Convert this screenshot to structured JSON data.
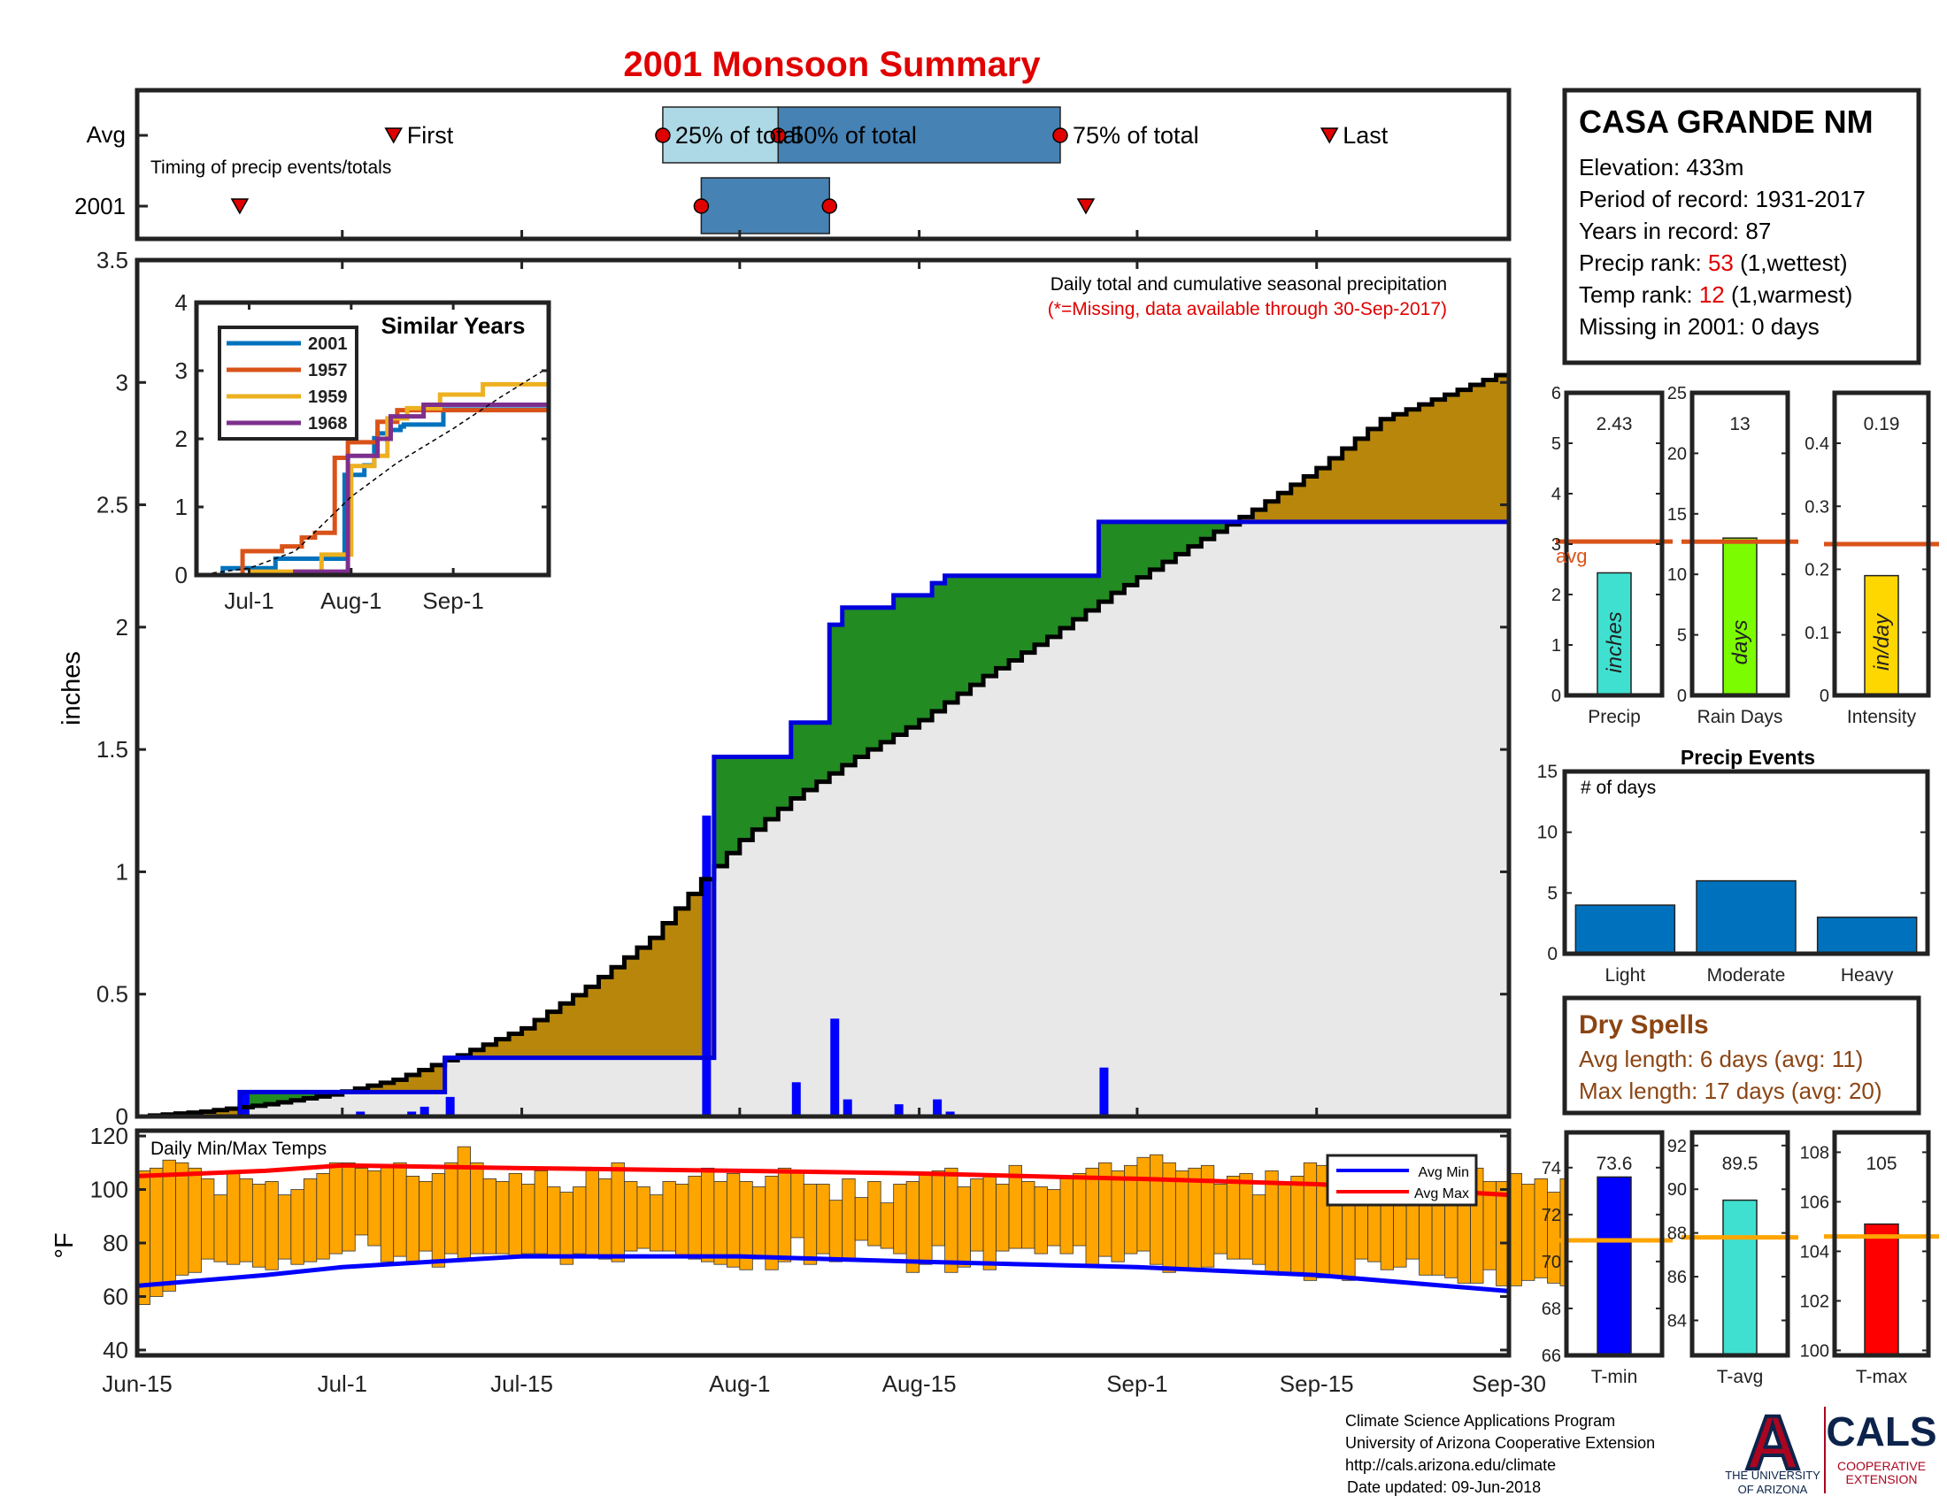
{
  "title": "2001 Monsoon Summary",
  "station": {
    "name": "CASA GRANDE NM",
    "elevation_label": "Elevation:",
    "elevation": "433m",
    "period_label": "Period of record:",
    "period": "1931-2017",
    "years_label": "Years in record:",
    "years": "87",
    "precip_rank_label": "Precip rank:",
    "precip_rank": "53",
    "precip_rank_note": "(1,wettest)",
    "temp_rank_label": "Temp rank:",
    "temp_rank": "12",
    "temp_rank_note": "(1,warmest)",
    "missing": "Missing in 2001: 0 days"
  },
  "timing": {
    "row_labels": [
      "Avg",
      "2001"
    ],
    "caption": "Timing of precip events/totals",
    "marker_labels": [
      "First",
      "25% of total",
      "50% of total",
      "75% of total",
      "Last"
    ],
    "avg": {
      "first": "2001-07-05",
      "p25": "2001-07-26",
      "p50": "2001-08-04",
      "p75": "2001-08-26",
      "last": "2001-09-16"
    },
    "y2001": {
      "first": "2001-06-23",
      "p25": "2001-07-29",
      "p50": "2001-08-08",
      "p75": "2001-08-28"
    },
    "colors": {
      "box_lower": "#add8e6",
      "box_upper": "#4682b4",
      "marker": "#e00000"
    }
  },
  "chart_data": [
    {
      "type": "area",
      "id": "daily_cumulative_precip",
      "title": "Daily total and cumulative seasonal precipitation",
      "subtitle": "(*=Missing, data available through 30-Sep-2017)",
      "ylabel": "inches",
      "ylim": [
        0,
        3.5
      ],
      "yticks": [
        0,
        0.5,
        1,
        1.5,
        2,
        2.5,
        3,
        3.5
      ],
      "ytick_labels": [
        "0",
        "0.5",
        "1",
        "1.5",
        "2",
        "2.5",
        "3",
        "3.5"
      ],
      "xlim": [
        "2001-06-15",
        "2001-09-30"
      ],
      "xtick_labels": [
        "Jun-15",
        "Jul-1",
        "Jul-15",
        "Aug-1",
        "Aug-15",
        "Sep-1",
        "Sep-15",
        "Sep-30"
      ],
      "series": [
        {
          "role": "avg_cumulative",
          "x": [
            "2001-06-15",
            "2001-06-20",
            "2001-06-25",
            "2001-06-30",
            "2001-07-05",
            "2001-07-10",
            "2001-07-15",
            "2001-07-20",
            "2001-07-25",
            "2001-07-29",
            "2001-08-01",
            "2001-08-05",
            "2001-08-10",
            "2001-08-15",
            "2001-08-20",
            "2001-08-25",
            "2001-08-30",
            "2001-09-05",
            "2001-09-10",
            "2001-09-15",
            "2001-09-20",
            "2001-09-25",
            "2001-09-30"
          ],
          "y": [
            0.0,
            0.02,
            0.05,
            0.09,
            0.15,
            0.25,
            0.36,
            0.53,
            0.73,
            0.97,
            1.13,
            1.3,
            1.47,
            1.62,
            1.8,
            1.96,
            2.14,
            2.33,
            2.48,
            2.65,
            2.85,
            2.95,
            3.05
          ]
        },
        {
          "role": "cumulative_2001",
          "x": [
            "2001-06-15",
            "2001-06-22",
            "2001-06-23",
            "2001-07-06",
            "2001-07-09",
            "2001-07-29",
            "2001-07-30",
            "2001-08-05",
            "2001-08-08",
            "2001-08-09",
            "2001-08-13",
            "2001-08-16",
            "2001-08-17",
            "2001-08-28",
            "2001-08-29",
            "2001-09-30"
          ],
          "y": [
            0.0,
            0.0,
            0.1,
            0.1,
            0.24,
            0.24,
            1.47,
            1.61,
            2.01,
            2.08,
            2.13,
            2.18,
            2.21,
            2.21,
            2.43,
            2.43
          ]
        },
        {
          "role": "daily_2001",
          "x": [
            "2001-06-23",
            "2001-07-02",
            "2001-07-06",
            "2001-07-07",
            "2001-07-09",
            "2001-07-29",
            "2001-08-05",
            "2001-08-08",
            "2001-08-09",
            "2001-08-13",
            "2001-08-16",
            "2001-08-17",
            "2001-08-29"
          ],
          "y": [
            0.1,
            0.02,
            0.02,
            0.04,
            0.08,
            1.23,
            0.14,
            0.4,
            0.07,
            0.05,
            0.07,
            0.02,
            0.2
          ]
        }
      ],
      "colors": {
        "below_avg": "#b8860b",
        "above_avg": "#228b22",
        "cumulative_line": "#0000dd",
        "daily_bars": "#0000ff",
        "fill": "#e8e8e8",
        "avg_line": "#000000"
      }
    },
    {
      "type": "line",
      "id": "similar_years",
      "title": "Similar Years",
      "ylim": [
        0,
        4
      ],
      "yticks": [
        0,
        1,
        2,
        3,
        4
      ],
      "ytick_labels": [
        "0",
        "1",
        "2",
        "3",
        "4"
      ],
      "xtick_labels": [
        "Jul-1",
        "Aug-1",
        "Sep-1"
      ],
      "xlim": [
        "2001-06-15",
        "2001-09-30"
      ],
      "series": [
        {
          "name": "2001",
          "color": "#0072bd",
          "x": [
            "2001-06-15",
            "2001-06-22",
            "2001-06-23",
            "2001-07-06",
            "2001-07-09",
            "2001-07-29",
            "2001-07-30",
            "2001-08-05",
            "2001-08-08",
            "2001-08-09",
            "2001-08-13",
            "2001-08-16",
            "2001-08-17",
            "2001-08-28",
            "2001-08-29"
          ],
          "y": [
            0.0,
            0.0,
            0.1,
            0.1,
            0.24,
            0.24,
            1.47,
            1.61,
            2.01,
            2.08,
            2.13,
            2.18,
            2.21,
            2.21,
            2.43
          ]
        },
        {
          "name": "1957",
          "color": "#d95319",
          "x": [
            "2001-06-15",
            "2001-06-28",
            "2001-06-29",
            "2001-07-10",
            "2001-07-11",
            "2001-07-16",
            "2001-07-17",
            "2001-07-20",
            "2001-07-21",
            "2001-07-26",
            "2001-07-27",
            "2001-07-30",
            "2001-07-31",
            "2001-08-08",
            "2001-08-09",
            "2001-08-14",
            "2001-08-15"
          ],
          "y": [
            0.0,
            0.0,
            0.35,
            0.35,
            0.42,
            0.42,
            0.55,
            0.55,
            0.62,
            0.62,
            1.72,
            1.72,
            1.95,
            1.95,
            2.25,
            2.25,
            2.42
          ]
        },
        {
          "name": "1959",
          "color": "#edb120",
          "x": [
            "2001-06-15",
            "2001-07-01",
            "2001-07-02",
            "2001-07-22",
            "2001-07-23",
            "2001-07-28",
            "2001-08-01",
            "2001-08-03",
            "2001-08-08",
            "2001-08-12",
            "2001-08-18",
            "2001-08-28",
            "2001-09-10",
            "2001-09-30"
          ],
          "y": [
            0.0,
            0.0,
            0.05,
            0.05,
            0.3,
            0.3,
            1.6,
            1.6,
            1.75,
            2.3,
            2.45,
            2.65,
            2.8,
            2.8
          ]
        },
        {
          "name": "1968",
          "color": "#7e2f8e",
          "x": [
            "2001-06-15",
            "2001-07-14",
            "2001-07-15",
            "2001-07-30",
            "2001-07-31",
            "2001-08-08",
            "2001-08-09",
            "2001-08-12",
            "2001-08-13",
            "2001-08-22",
            "2001-08-23",
            "2001-09-30"
          ],
          "y": [
            0.0,
            0.0,
            0.05,
            0.05,
            1.75,
            1.75,
            2.0,
            2.0,
            2.33,
            2.33,
            2.5,
            2.5
          ]
        }
      ],
      "avg_line": {
        "x": [
          "2001-06-15",
          "2001-07-01",
          "2001-07-15",
          "2001-08-01",
          "2001-08-15",
          "2001-09-01",
          "2001-09-15",
          "2001-09-30"
        ],
        "y": [
          0.0,
          0.1,
          0.35,
          1.15,
          1.65,
          2.15,
          2.6,
          3.05
        ]
      }
    },
    {
      "type": "bar",
      "id": "season_totals",
      "panels": [
        {
          "name": "Precip",
          "unit_label": "inches",
          "value": 2.43,
          "value_label": "2.43",
          "avg": 3.05,
          "ylim": [
            0,
            6
          ],
          "yticks": [
            0,
            1,
            2,
            3,
            4,
            5,
            6
          ],
          "ytick_labels": [
            "0",
            "1",
            "2",
            "3",
            "4",
            "5",
            "6"
          ],
          "color": "#40e0d0",
          "avg_label": "avg"
        },
        {
          "name": "Rain Days",
          "unit_label": "days",
          "value": 13,
          "value_label": "13",
          "avg": 12.7,
          "ylim": [
            0,
            25
          ],
          "yticks": [
            0,
            5,
            10,
            15,
            20,
            25
          ],
          "ytick_labels": [
            "0",
            "5",
            "10",
            "15",
            "20",
            "25"
          ],
          "color": "#7cfc00"
        },
        {
          "name": "Intensity",
          "unit_label": "in/day",
          "value": 0.19,
          "value_label": "0.19",
          "avg": 0.24,
          "ylim": [
            0,
            0.48
          ],
          "yticks": [
            0,
            0.1,
            0.2,
            0.3,
            0.4
          ],
          "ytick_labels": [
            "0",
            "0.1",
            "0.2",
            "0.3",
            "0.4"
          ],
          "color": "#ffd700"
        }
      ],
      "avg_color": "#d95319"
    },
    {
      "type": "bar",
      "id": "precip_events",
      "title": "Precip Events",
      "ylabel": "# of days",
      "categories": [
        "Light",
        "Moderate",
        "Heavy"
      ],
      "values": [
        4,
        6,
        3
      ],
      "ylim": [
        0,
        15
      ],
      "yticks": [
        0,
        5,
        10,
        15
      ],
      "ytick_labels": [
        "0",
        "5",
        "10",
        "15"
      ],
      "color": "#0072bd"
    },
    {
      "type": "bar",
      "id": "daily_temps",
      "title": "Daily Min/Max Temps",
      "ylabel": "°F",
      "ylim": [
        38,
        122
      ],
      "yticks": [
        40,
        60,
        80,
        100,
        120
      ],
      "ytick_labels": [
        "40",
        "60",
        "80",
        "100",
        "120"
      ],
      "start_date": "2001-06-15",
      "tmax": [
        107,
        108,
        111,
        110,
        108,
        104,
        98,
        106,
        104,
        102,
        103,
        98,
        100,
        104,
        106,
        110,
        110,
        108,
        107,
        109,
        110,
        105,
        103,
        106,
        110,
        116,
        110,
        104,
        103,
        106,
        102,
        107,
        101,
        99,
        101,
        108,
        104,
        110,
        103,
        101,
        98,
        103,
        102,
        105,
        108,
        103,
        106,
        103,
        101,
        105,
        108,
        107,
        102,
        102,
        96,
        104,
        97,
        103,
        95,
        102,
        103,
        106,
        107,
        108,
        101,
        104,
        106,
        102,
        109,
        103,
        101,
        100,
        104,
        106,
        108,
        110,
        107,
        109,
        112,
        113,
        110,
        107,
        108,
        109,
        102,
        105,
        106,
        98,
        107,
        102,
        105,
        110,
        109,
        105,
        108,
        104,
        107,
        108,
        101,
        106,
        104,
        101,
        106,
        107,
        108,
        103,
        103,
        106,
        102,
        104,
        99,
        104
      ],
      "tmin": [
        57,
        60,
        62,
        68,
        69,
        74,
        73,
        72,
        73,
        71,
        70,
        74,
        72,
        73,
        74,
        76,
        77,
        83,
        79,
        73,
        75,
        73,
        77,
        71,
        76,
        74,
        76,
        76,
        76,
        75,
        76,
        76,
        75,
        72,
        76,
        75,
        74,
        73,
        77,
        78,
        77,
        77,
        75,
        74,
        73,
        72,
        71,
        70,
        74,
        70,
        73,
        82,
        72,
        76,
        73,
        74,
        81,
        79,
        78,
        76,
        69,
        72,
        79,
        69,
        71,
        77,
        70,
        77,
        78,
        78,
        76,
        79,
        76,
        79,
        72,
        75,
        73,
        76,
        77,
        72,
        69,
        70,
        70,
        71,
        76,
        74,
        74,
        72,
        69,
        68,
        69,
        66,
        67,
        67,
        66,
        74,
        73,
        70,
        71,
        74,
        68,
        68,
        67,
        65,
        65,
        70,
        64,
        64,
        66,
        67,
        65,
        64
      ],
      "avg_min_x": [
        "2001-06-15",
        "2001-06-25",
        "2001-07-01",
        "2001-07-15",
        "2001-08-01",
        "2001-08-15",
        "2001-09-01",
        "2001-09-15",
        "2001-09-30"
      ],
      "avg_min": [
        64,
        68,
        71,
        75,
        75,
        73,
        71,
        68,
        62
      ],
      "avg_max_x": [
        "2001-06-15",
        "2001-06-25",
        "2001-07-01",
        "2001-07-15",
        "2001-08-01",
        "2001-08-15",
        "2001-09-01",
        "2001-09-15",
        "2001-09-30"
      ],
      "avg_max": [
        105,
        107,
        109,
        108,
        107,
        106,
        104,
        102,
        98
      ],
      "legend": [
        "Avg Min",
        "Avg Max"
      ],
      "colors": {
        "bars": "#ffa500",
        "avg_min": "#0000ff",
        "avg_max": "#ff0000"
      }
    },
    {
      "type": "bar",
      "id": "season_temps",
      "panels": [
        {
          "name": "T-min",
          "value": 73.6,
          "value_label": "73.6",
          "avg": 70.9,
          "ylim": [
            66,
            75.5
          ],
          "yticks": [
            66,
            68,
            70,
            72,
            74
          ],
          "ytick_labels": [
            "66",
            "68",
            "70",
            "72",
            "74"
          ],
          "color": "#0000ff"
        },
        {
          "name": "T-avg",
          "value": 89.5,
          "value_label": "89.5",
          "avg": 87.8,
          "ylim": [
            82.4,
            92.6
          ],
          "yticks": [
            84,
            86,
            88,
            90,
            92
          ],
          "ytick_labels": [
            "84",
            "86",
            "88",
            "90",
            "92"
          ],
          "color": "#40e0d0"
        },
        {
          "name": "T-max",
          "value": 105.1,
          "value_label": "105",
          "avg": 104.6,
          "ylim": [
            99.8,
            108.8
          ],
          "yticks": [
            100,
            102,
            104,
            106,
            108
          ],
          "ytick_labels": [
            "100",
            "102",
            "104",
            "106",
            "108"
          ],
          "color": "#ff0000"
        }
      ],
      "avg_color": "#ffa500"
    }
  ],
  "dry_spells": {
    "title": "Dry Spells",
    "avg_length": "Avg length: 6 days (avg: 11)",
    "max_length": "Max length: 17 days (avg: 20)",
    "color": "#8b4513"
  },
  "footer": {
    "lines": [
      "Climate Science Applications Program",
      "University of Arizona Cooperative Extension",
      "http://cals.arizona.edu/climate",
      "Date updated: 09-Jun-2018"
    ],
    "ua_text": [
      "THE UNIVERSITY",
      "OF ARIZONA"
    ],
    "ua_logo_text": "A",
    "cals_logo_text": "CALS",
    "cals_sub": [
      "COOPERATIVE",
      "EXTENSION"
    ],
    "colors": {
      "ua_blue": "#0c234b",
      "ua_red": "#ab0520"
    }
  }
}
